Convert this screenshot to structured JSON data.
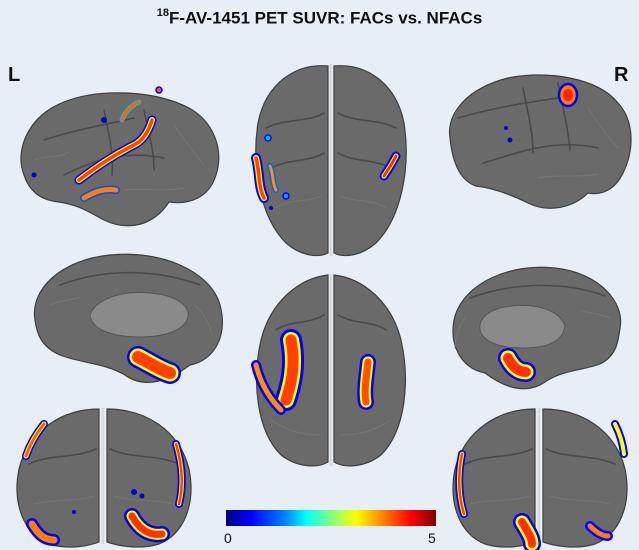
{
  "title": {
    "isotope_superscript": "18",
    "text": "F-AV-1451 PET SUVR: FACs vs. NFACs"
  },
  "hemisphere_labels": {
    "left": "L",
    "right": "R"
  },
  "colorbar": {
    "min_label": "0",
    "max_label": "5",
    "colormap": "jet"
  },
  "views": [
    "left-lateral",
    "superior",
    "right-lateral",
    "left-medial",
    "inferior",
    "right-medial",
    "posterior-left",
    "posterior-right"
  ],
  "colors": {
    "background": "#e7eef6",
    "cortex": "#6a6a6a",
    "high": "#ff0000",
    "mid": "#ffff00",
    "low": "#0000ff"
  }
}
